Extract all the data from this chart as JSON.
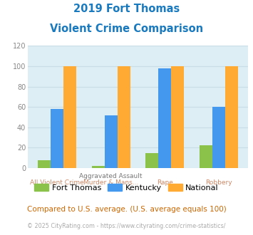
{
  "title_line1": "2019 Fort Thomas",
  "title_line2": "Violent Crime Comparison",
  "cat_top_labels": [
    "",
    "Aggravated Assault",
    "",
    ""
  ],
  "cat_bot_labels": [
    "All Violent Crime",
    "Murder & Mans...",
    "Rape",
    "Robbery"
  ],
  "fort_thomas": [
    8,
    2,
    15,
    22
  ],
  "kentucky": [
    58,
    52,
    98,
    60
  ],
  "national": [
    100,
    100,
    100,
    100
  ],
  "bar_colors": {
    "fort_thomas": "#8bc34a",
    "kentucky": "#4499ee",
    "national": "#ffaa33"
  },
  "ylim": [
    0,
    120
  ],
  "yticks": [
    0,
    20,
    40,
    60,
    80,
    100,
    120
  ],
  "legend_labels": [
    "Fort Thomas",
    "Kentucky",
    "National"
  ],
  "subtitle": "Compared to U.S. average. (U.S. average equals 100)",
  "footer": "© 2025 CityRating.com - https://www.cityrating.com/crime-statistics/",
  "title_color": "#1a7abf",
  "subtitle_color": "#cc6600",
  "footer_color": "#aaaaaa",
  "label_color": "#cc8866",
  "top_label_color": "#777777",
  "bg_color": "#ffffff",
  "plot_bg": "#ddeef4",
  "grid_color": "#c8dde6"
}
